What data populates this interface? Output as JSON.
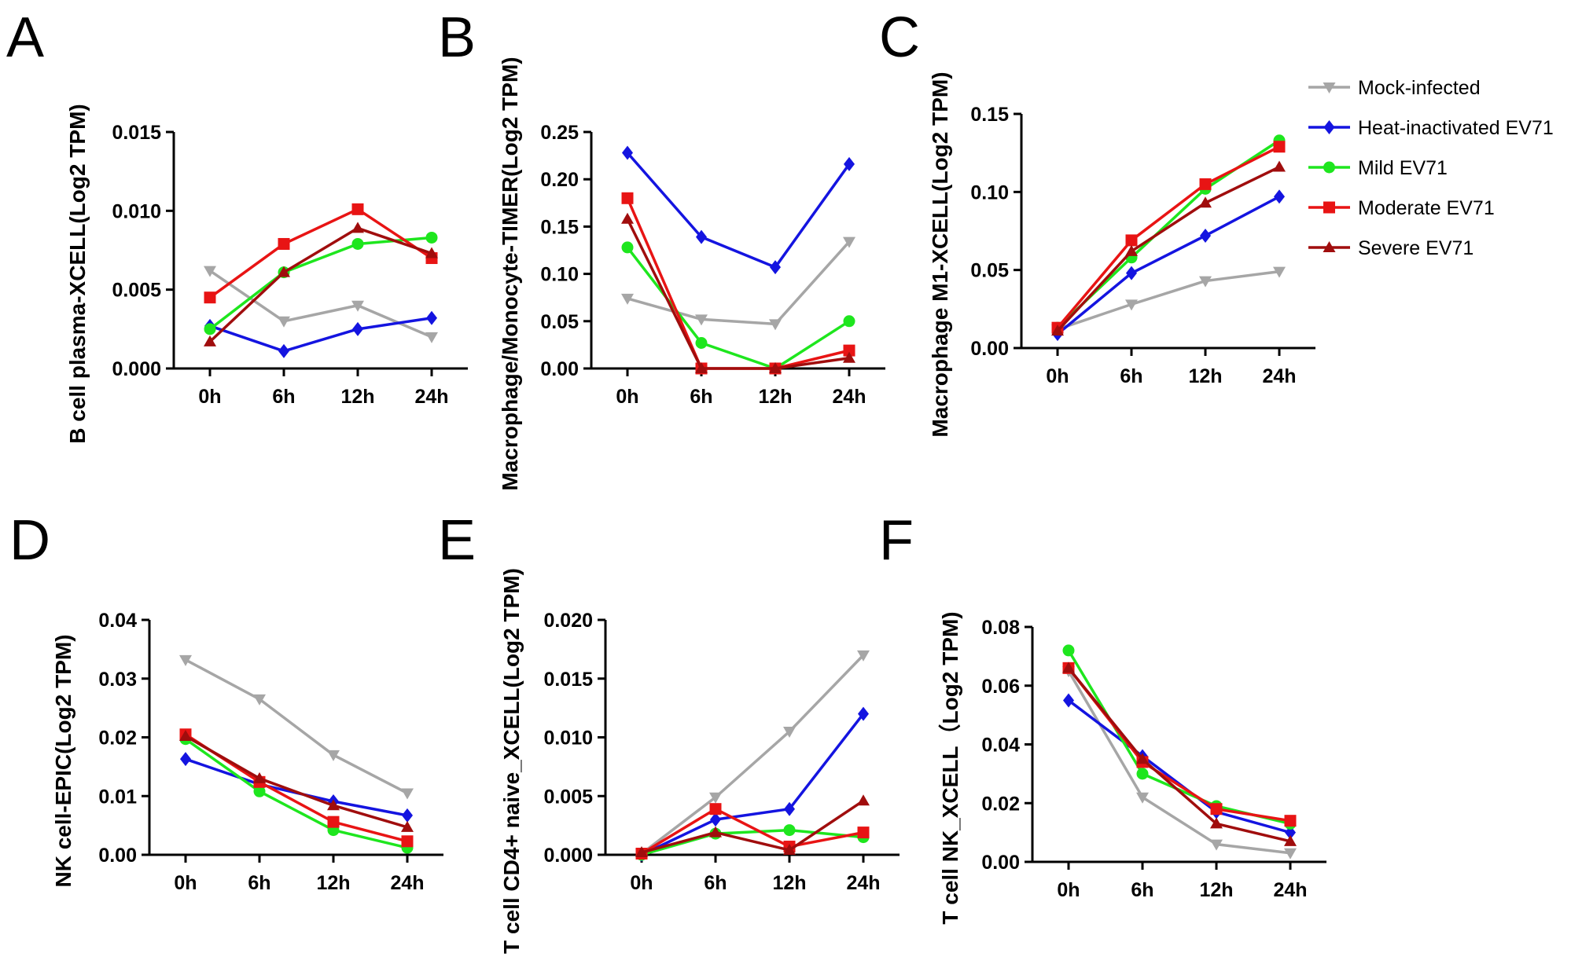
{
  "chart_data": {
    "type": "line",
    "categories": [
      "0h",
      "6h",
      "12h",
      "24h"
    ],
    "series_styles": [
      {
        "name": "Mock-infected",
        "color": "#a6a6a6",
        "marker": "triangle-down"
      },
      {
        "name": "Heat-inactivated EV71",
        "color": "#1414e0",
        "marker": "diamond"
      },
      {
        "name": "Mild EV71",
        "color": "#1ee61e",
        "marker": "circle"
      },
      {
        "name": "Moderate EV71",
        "color": "#e81414",
        "marker": "square"
      },
      {
        "name": "Severe EV71",
        "color": "#a00d0d",
        "marker": "triangle-up"
      }
    ],
    "legend": {
      "position": "top-right",
      "entries": [
        "Mock-infected",
        "Heat-inactivated EV71",
        "Mild EV71",
        "Moderate EV71",
        "Severe EV71"
      ]
    },
    "panels": [
      {
        "letter": "A",
        "ylabel": "B cell plasma-XCELL(Log2 TPM)",
        "ylim": [
          0,
          0.015
        ],
        "yticks": [
          "0.000",
          "0.005",
          "0.010",
          "0.015"
        ],
        "series": [
          {
            "name": "Mock-infected",
            "values": [
              0.0062,
              0.003,
              0.004,
              0.002
            ]
          },
          {
            "name": "Heat-inactivated EV71",
            "values": [
              0.0027,
              0.0011,
              0.0025,
              0.0032
            ]
          },
          {
            "name": "Mild EV71",
            "values": [
              0.0025,
              0.0061,
              0.0079,
              0.0083
            ]
          },
          {
            "name": "Moderate EV71",
            "values": [
              0.0045,
              0.0079,
              0.0101,
              0.007
            ]
          },
          {
            "name": "Severe EV71",
            "values": [
              0.0017,
              0.0061,
              0.0089,
              0.0073
            ]
          }
        ]
      },
      {
        "letter": "B",
        "ylabel": "Macrophage/Monocyte-TIMER(Log2 TPM)",
        "ylim": [
          0,
          0.25
        ],
        "yticks": [
          "0.00",
          "0.05",
          "0.10",
          "0.15",
          "0.20",
          "0.25"
        ],
        "series": [
          {
            "name": "Mock-infected",
            "values": [
              0.074,
              0.052,
              0.047,
              0.134
            ]
          },
          {
            "name": "Heat-inactivated EV71",
            "values": [
              0.228,
              0.139,
              0.107,
              0.216
            ]
          },
          {
            "name": "Mild EV71",
            "values": [
              0.128,
              0.027,
              0.0,
              0.05
            ]
          },
          {
            "name": "Moderate EV71",
            "values": [
              0.18,
              0.0,
              0.0,
              0.019
            ]
          },
          {
            "name": "Severe EV71",
            "values": [
              0.158,
              0.0,
              0.0,
              0.011
            ]
          }
        ]
      },
      {
        "letter": "C",
        "ylabel": "Macrophage M1-XCELL(Log2 TPM)",
        "ylim": [
          0,
          0.15
        ],
        "yticks": [
          "0.00",
          "0.05",
          "0.10",
          "0.15"
        ],
        "series": [
          {
            "name": "Mock-infected",
            "values": [
              0.012,
              0.028,
              0.043,
              0.049
            ]
          },
          {
            "name": "Heat-inactivated EV71",
            "values": [
              0.009,
              0.048,
              0.072,
              0.097
            ]
          },
          {
            "name": "Mild EV71",
            "values": [
              0.013,
              0.058,
              0.102,
              0.133
            ]
          },
          {
            "name": "Moderate EV71",
            "values": [
              0.013,
              0.069,
              0.105,
              0.129
            ]
          },
          {
            "name": "Severe EV71",
            "values": [
              0.011,
              0.062,
              0.093,
              0.116
            ]
          }
        ]
      },
      {
        "letter": "D",
        "ylabel": "NK cell-EPIC(Log2 TPM)",
        "ylim": [
          0,
          0.04
        ],
        "yticks": [
          "0.00",
          "0.01",
          "0.02",
          "0.03",
          "0.04"
        ],
        "series": [
          {
            "name": "Mock-infected",
            "values": [
              0.0332,
              0.0265,
              0.017,
              0.0105
            ]
          },
          {
            "name": "Heat-inactivated EV71",
            "values": [
              0.0163,
              0.012,
              0.0091,
              0.0067
            ]
          },
          {
            "name": "Mild EV71",
            "values": [
              0.0197,
              0.0108,
              0.0042,
              0.0012
            ]
          },
          {
            "name": "Moderate EV71",
            "values": [
              0.0205,
              0.0124,
              0.0056,
              0.0023
            ]
          },
          {
            "name": "Severe EV71",
            "values": [
              0.0202,
              0.013,
              0.0084,
              0.0047
            ]
          }
        ]
      },
      {
        "letter": "E",
        "ylabel": "T cell CD4+ naive_XCELL(Log2 TPM)",
        "ylim": [
          0,
          0.02
        ],
        "yticks": [
          "0.000",
          "0.005",
          "0.010",
          "0.015",
          "0.020"
        ],
        "series": [
          {
            "name": "Mock-infected",
            "values": [
              0.0001,
              0.0049,
              0.0105,
              0.017
            ]
          },
          {
            "name": "Heat-inactivated EV71",
            "values": [
              0.0,
              0.003,
              0.0039,
              0.012
            ]
          },
          {
            "name": "Mild EV71",
            "values": [
              0.0,
              0.0018,
              0.0021,
              0.0015
            ]
          },
          {
            "name": "Moderate EV71",
            "values": [
              0.0001,
              0.0039,
              0.0007,
              0.0019
            ]
          },
          {
            "name": "Severe EV71",
            "values": [
              0.0002,
              0.0019,
              0.0004,
              0.0046
            ]
          }
        ]
      },
      {
        "letter": "F",
        "ylabel": "T cell NK_XCELL（Log2 TPM)",
        "ylim": [
          0,
          0.08
        ],
        "yticks": [
          "0.00",
          "0.02",
          "0.04",
          "0.06",
          "0.08"
        ],
        "series": [
          {
            "name": "Mock-infected",
            "values": [
              0.065,
              0.022,
              0.006,
              0.003
            ]
          },
          {
            "name": "Heat-inactivated EV71",
            "values": [
              0.055,
              0.036,
              0.017,
              0.01
            ]
          },
          {
            "name": "Mild EV71",
            "values": [
              0.072,
              0.03,
              0.019,
              0.013
            ]
          },
          {
            "name": "Moderate EV71",
            "values": [
              0.066,
              0.034,
              0.018,
              0.014
            ]
          },
          {
            "name": "Severe EV71",
            "values": [
              0.066,
              0.035,
              0.013,
              0.007
            ]
          }
        ]
      }
    ]
  }
}
